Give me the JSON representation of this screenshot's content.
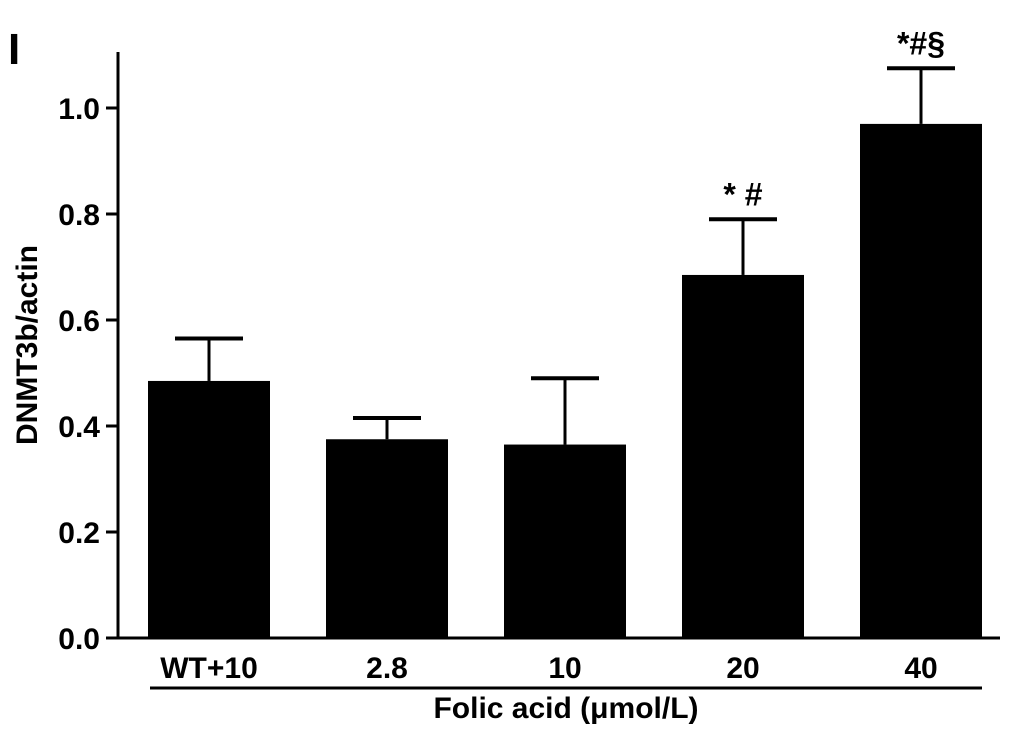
{
  "chart_data": {
    "type": "bar",
    "panel_label": "I",
    "title": "",
    "xlabel": "Folic acid (μmol/L)",
    "ylabel": "DNMT3b/actin",
    "ylim": [
      0,
      1.1
    ],
    "yticks": [
      0.0,
      0.2,
      0.4,
      0.6,
      0.8,
      1.0
    ],
    "ytick_labels": [
      "0.0",
      "0.2",
      "0.4",
      "0.6",
      "0.8",
      "1.0"
    ],
    "categories": [
      "WT+10",
      "2.8",
      "10",
      "20",
      "40"
    ],
    "values": [
      0.485,
      0.375,
      0.365,
      0.685,
      0.97
    ],
    "error": [
      0.08,
      0.04,
      0.125,
      0.105,
      0.105
    ],
    "annotations": [
      "",
      "",
      "",
      "* #",
      "*#§"
    ],
    "bar_color": "#000000",
    "grid": false,
    "legend": "none"
  }
}
